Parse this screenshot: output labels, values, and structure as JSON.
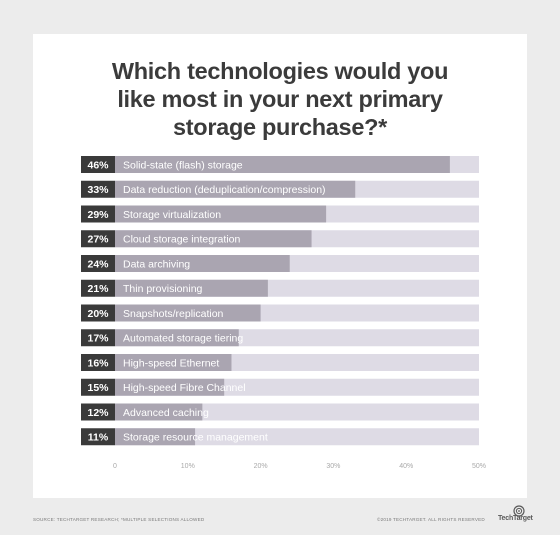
{
  "chart_data": {
    "type": "bar",
    "orientation": "horizontal",
    "title_lines": [
      "Which technologies would you",
      "like most in your next primary",
      "storage purchase?*"
    ],
    "categories": [
      "Solid-state (flash) storage",
      "Data reduction (deduplication/compression)",
      "Storage virtualization",
      "Cloud storage integration",
      "Data archiving",
      "Thin provisioning",
      "Snapshots/replication",
      "Automated storage tiering",
      "High-speed Ethernet",
      "High-speed Fibre Channel",
      "Advanced caching",
      "Storage resource management"
    ],
    "values": [
      46,
      33,
      29,
      27,
      24,
      21,
      20,
      17,
      16,
      15,
      12,
      11
    ],
    "value_labels": [
      "46%",
      "33%",
      "29%",
      "27%",
      "24%",
      "21%",
      "20%",
      "17%",
      "16%",
      "15%",
      "12%",
      "11%"
    ],
    "xlim": [
      0,
      50
    ],
    "xticks": [
      "0",
      "10%",
      "20%",
      "30%",
      "40%",
      "50%"
    ],
    "grid": false,
    "colors": {
      "background": "#ececec",
      "card": "#ffffff",
      "track": "#dedbe5",
      "bar": "#aaa5b1",
      "label_box": "#3a3a3a",
      "title": "#3b3b3b"
    }
  },
  "footer": {
    "source": "SOURCE: TECHTARGET RESEARCH; *MULTIPLE SELECTIONS ALLOWED",
    "copyright": "©2019 TECHTARGET. ALL RIGHTS RESERVED",
    "logo_text": "TechTarget"
  }
}
